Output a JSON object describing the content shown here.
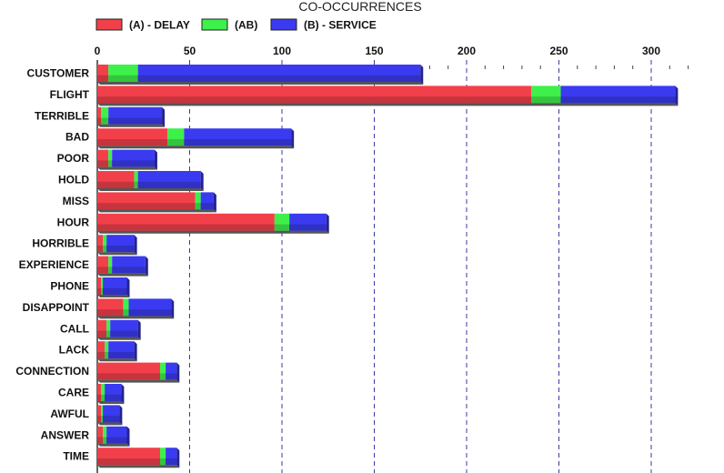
{
  "chart_data": {
    "type": "bar",
    "orientation": "horizontal",
    "stacked": true,
    "title": "CO-OCCURRENCES",
    "legend_position": "top-left",
    "grid": true,
    "xlim": [
      0,
      320
    ],
    "x_ticks": [
      0,
      50,
      100,
      150,
      200,
      250,
      300
    ],
    "categories": [
      "CUSTOMER",
      "FLIGHT",
      "TERRIBLE",
      "BAD",
      "POOR",
      "HOLD",
      "MISS",
      "HOUR",
      "HORRIBLE",
      "EXPERIENCE",
      "PHONE",
      "DISAPPOINT",
      "CALL",
      "LACK",
      "CONNECTION",
      "CARE",
      "AWFUL",
      "ANSWER",
      "TIME"
    ],
    "series": [
      {
        "name": "(A) - DELAY",
        "color": "#f2404a",
        "values": [
          6,
          235,
          2,
          38,
          6,
          20,
          53,
          96,
          3,
          6,
          2,
          14,
          5,
          4,
          34,
          2,
          2,
          3,
          34
        ]
      },
      {
        "name": "(AB)",
        "color": "#3ef04a",
        "values": [
          16,
          16,
          4,
          9,
          2,
          2,
          3,
          8,
          2,
          2,
          1,
          3,
          2,
          2,
          3,
          2,
          1,
          2,
          3
        ]
      },
      {
        "name": "(B) - SERVICE",
        "color": "#3a3af0",
        "values": [
          153,
          62,
          29,
          58,
          23,
          34,
          7,
          20,
          15,
          18,
          13,
          23,
          15,
          14,
          6,
          9,
          9,
          11,
          6
        ]
      }
    ]
  }
}
